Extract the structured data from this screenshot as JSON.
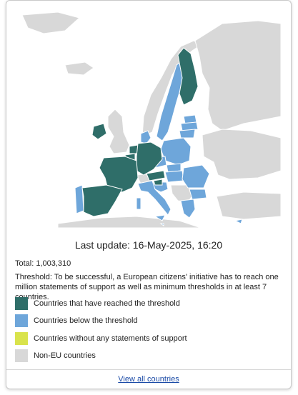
{
  "map": {
    "legend_colors": {
      "reached": "#2f6e69",
      "below": "#6ea6da",
      "none": "#d9e34c",
      "non_eu": "#d8d8d8"
    },
    "countries_reached": [
      "Finland",
      "Ireland",
      "Netherlands",
      "Belgium",
      "Luxembourg",
      "France",
      "Germany",
      "Austria",
      "Slovenia",
      "Spain"
    ],
    "countries_below": [
      "Sweden",
      "Denmark",
      "Estonia",
      "Latvia",
      "Lithuania",
      "Poland",
      "Czechia",
      "Slovakia",
      "Hungary",
      "Croatia",
      "Romania",
      "Bulgaria",
      "Italy",
      "Portugal",
      "Greece",
      "Cyprus",
      "Malta"
    ],
    "countries_none": []
  },
  "status": {
    "last_update": "Last update: 16-May-2025, 16:20",
    "total": "Total: 1,003,310",
    "threshold": "Threshold: To be successful, a European citizens' initiative has to reach one million statements of support as well as minimum thresholds in at least 7 countries."
  },
  "legend": [
    {
      "label": "Countries that have reached the threshold",
      "color": "#2f6e69"
    },
    {
      "label": "Countries below the threshold",
      "color": "#6ea6da"
    },
    {
      "label": "Countries without any statements of support",
      "color": "#d9e34c"
    },
    {
      "label": "Non-EU countries",
      "color": "#d8d8d8"
    }
  ],
  "footer": {
    "view_all": "View all countries"
  }
}
